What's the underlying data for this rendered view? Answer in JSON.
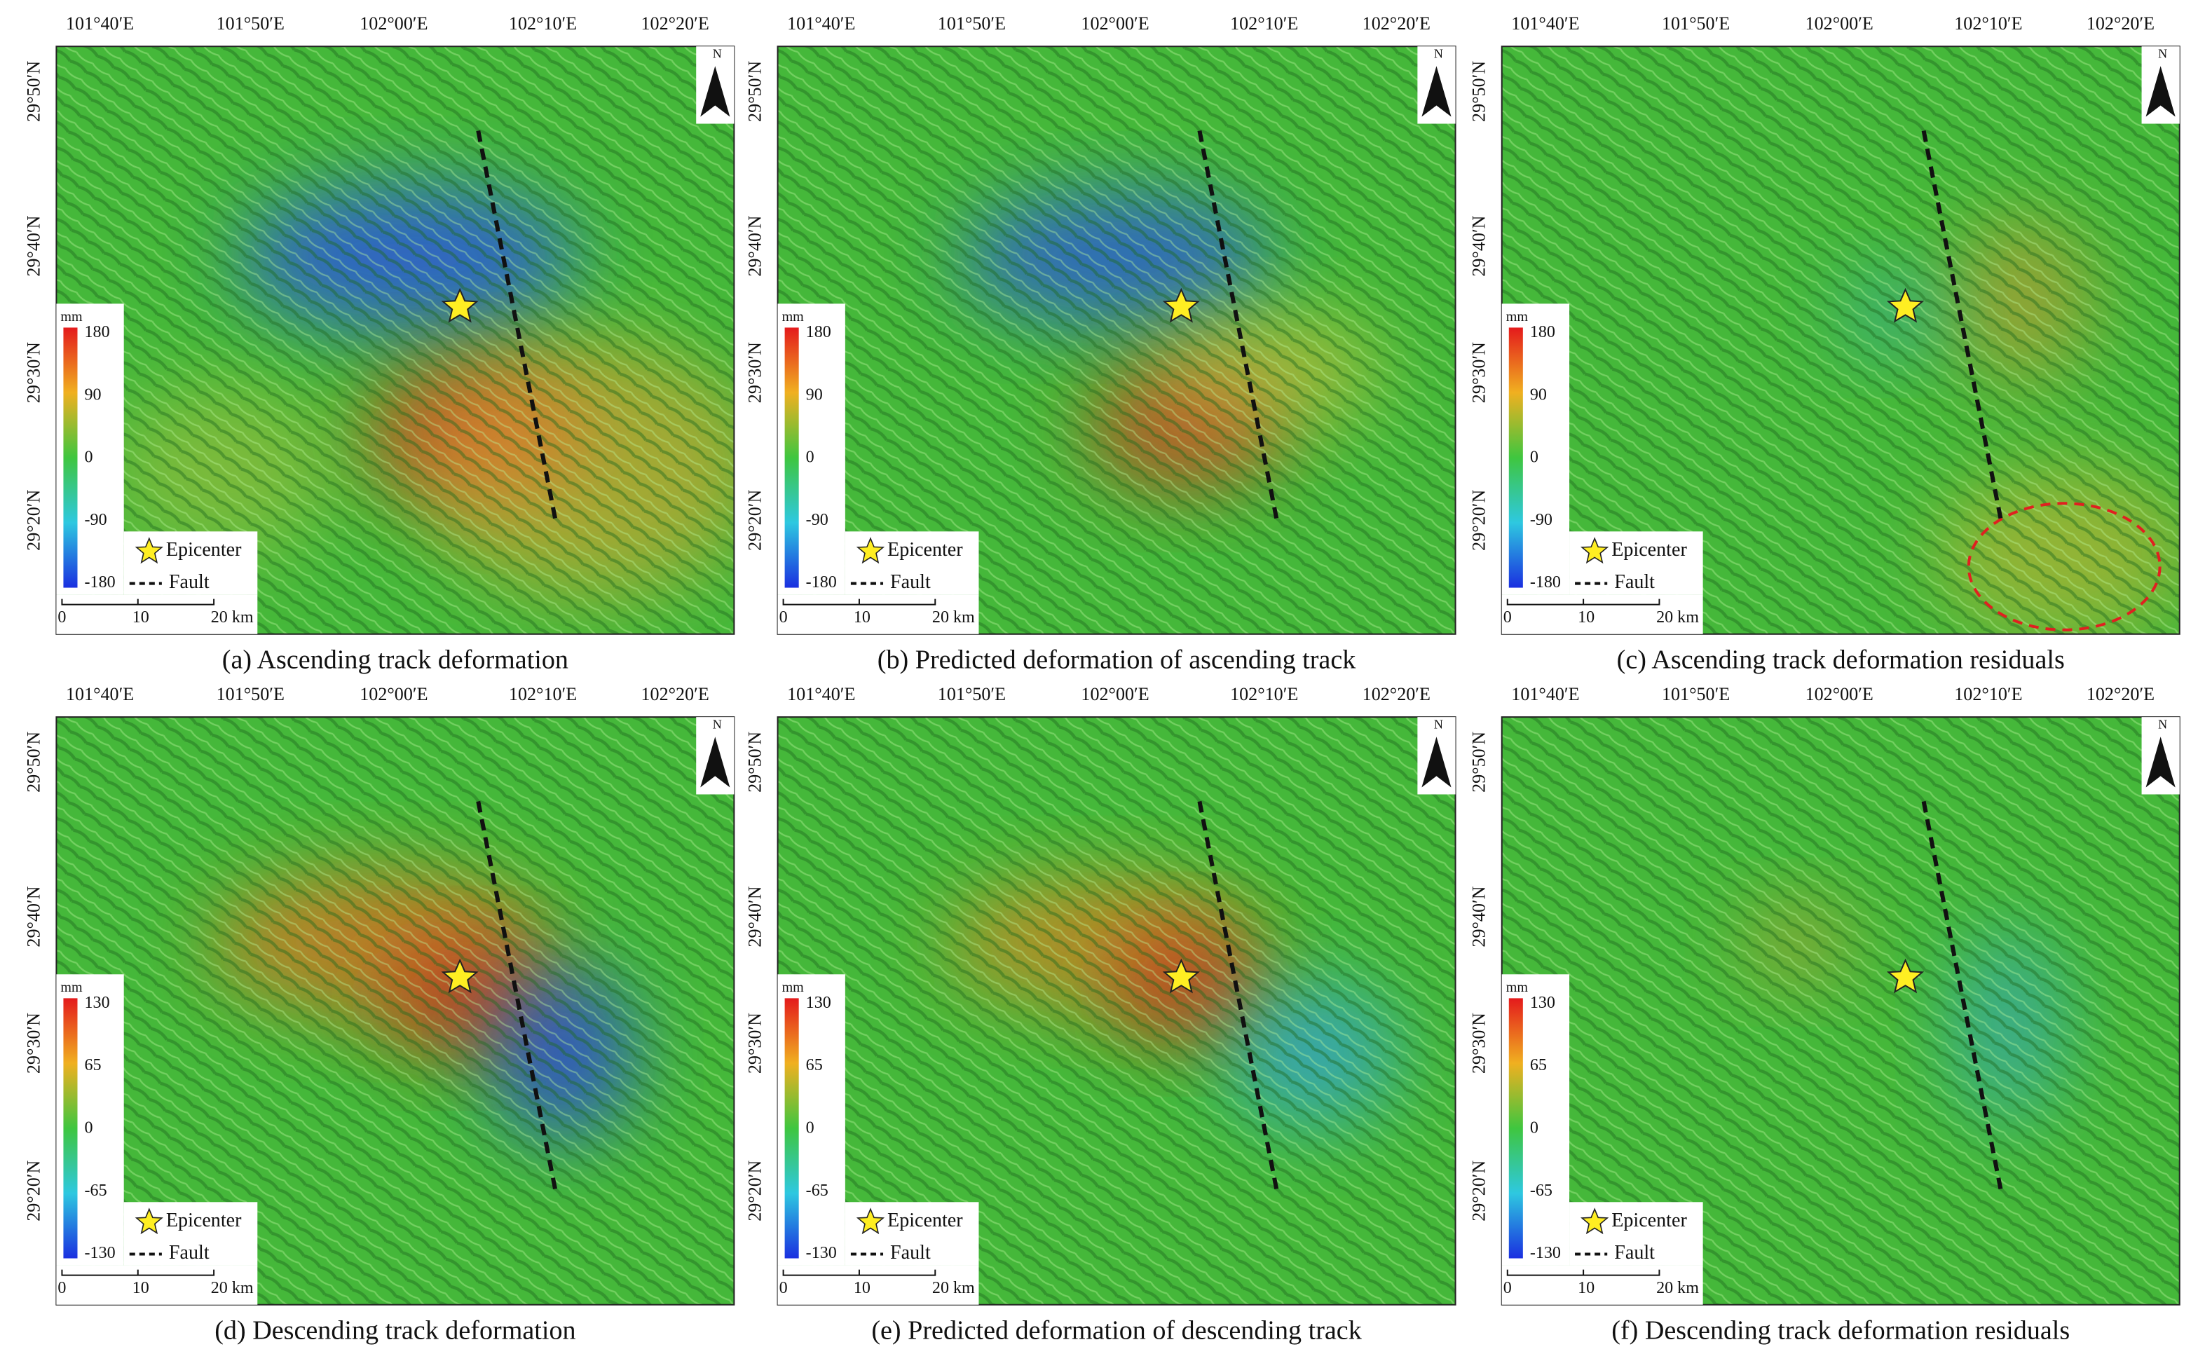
{
  "figure": {
    "panels": [
      {
        "caption": "(a) Ascending track deformation",
        "lon_labels": [
          "101°40′E",
          "101°50′E",
          "102°00′E",
          "102°10′E",
          "102°20′E"
        ],
        "lat_labels": [
          "29°50′N",
          "29°40′N",
          "29°30′N",
          "29°20′N"
        ],
        "legend": {
          "unit": "mm",
          "ticks": [
            180,
            90,
            0,
            -90,
            -180
          ],
          "epicenter": "Epicenter",
          "fault": "Fault"
        },
        "scale": [
          "0",
          "10",
          "20 km"
        ],
        "north": "N"
      },
      {
        "caption": "(b) Predicted deformation of ascending track",
        "lon_labels": [
          "101°40′E",
          "101°50′E",
          "102°00′E",
          "102°10′E",
          "102°20′E"
        ],
        "lat_labels": [
          "29°50′N",
          "29°40′N",
          "29°30′N",
          "29°20′N"
        ],
        "legend": {
          "unit": "mm",
          "ticks": [
            180,
            90,
            0,
            -90,
            -180
          ],
          "epicenter": "Epicenter",
          "fault": "Fault"
        },
        "scale": [
          "0",
          "10",
          "20 km"
        ],
        "north": "N"
      },
      {
        "caption": "(c) Ascending track deformation residuals",
        "lon_labels": [
          "101°40′E",
          "101°50′E",
          "102°00′E",
          "102°10′E",
          "102°20′E"
        ],
        "lat_labels": [
          "29°50′N",
          "29°40′N",
          "29°30′N",
          "29°20′N"
        ],
        "legend": {
          "unit": "mm",
          "ticks": [
            180,
            90,
            0,
            -90,
            -180
          ],
          "epicenter": "Epicenter",
          "fault": "Fault"
        },
        "scale": [
          "0",
          "10",
          "20 km"
        ],
        "north": "N"
      },
      {
        "caption": "(d) Descending track deformation",
        "lon_labels": [
          "101°40′E",
          "101°50′E",
          "102°00′E",
          "102°10′E",
          "102°20′E"
        ],
        "lat_labels": [
          "29°50′N",
          "29°40′N",
          "29°30′N",
          "29°20′N"
        ],
        "legend": {
          "unit": "mm",
          "ticks": [
            130,
            65,
            0,
            -65,
            -130
          ],
          "epicenter": "Epicenter",
          "fault": "Fault"
        },
        "scale": [
          "0",
          "10",
          "20 km"
        ],
        "north": "N"
      },
      {
        "caption": "(e) Predicted deformation of descending track",
        "lon_labels": [
          "101°40′E",
          "101°50′E",
          "102°00′E",
          "102°10′E",
          "102°20′E"
        ],
        "lat_labels": [
          "29°50′N",
          "29°40′N",
          "29°30′N",
          "29°20′N"
        ],
        "legend": {
          "unit": "mm",
          "ticks": [
            130,
            65,
            0,
            -65,
            -130
          ],
          "epicenter": "Epicenter",
          "fault": "Fault"
        },
        "scale": [
          "0",
          "10",
          "20 km"
        ],
        "north": "N"
      },
      {
        "caption": "(f) Descending track deformation residuals",
        "lon_labels": [
          "101°40′E",
          "101°50′E",
          "102°00′E",
          "102°10′E",
          "102°20′E"
        ],
        "lat_labels": [
          "29°50′N",
          "29°40′N",
          "29°30′N",
          "29°20′N"
        ],
        "legend": {
          "unit": "mm",
          "ticks": [
            130,
            65,
            0,
            -65,
            -130
          ],
          "epicenter": "Epicenter",
          "fault": "Fault"
        },
        "scale": [
          "0",
          "10",
          "20 km"
        ],
        "north": "N"
      }
    ]
  }
}
